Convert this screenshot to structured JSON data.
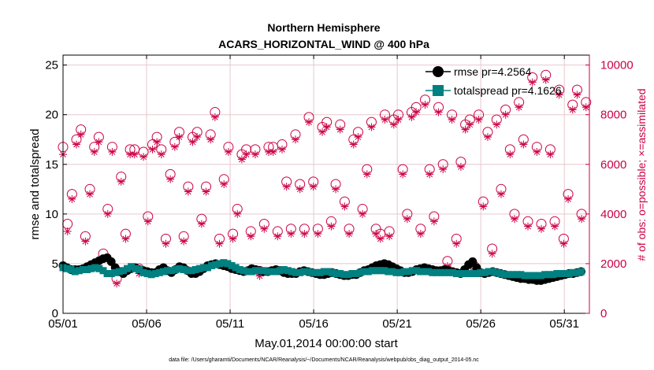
{
  "chart_data": {
    "type": "scatter",
    "title_line1": "Northern Hemisphere",
    "title_line2": "ACARS_HORIZONTAL_WIND @ 400 hPa",
    "xlabel": "May.01,2014 00:00:00 start",
    "ylabel_left": "rmse and totalspread",
    "ylabel_right": "# of obs: o=possible; ×=assimilated",
    "footnote": "data file: /Users/gharamti/Documents/NCAR/Reanalysis/~/Documents/NCAR/Reanalysis/webpub/obs_diag_output_2014-05.nc",
    "x_range": [
      0,
      31.5
    ],
    "x_tick_labels": [
      "05/01",
      "05/06",
      "05/11",
      "05/16",
      "05/21",
      "05/26",
      "05/31"
    ],
    "x_tick_values": [
      0,
      5,
      10,
      15,
      20,
      25,
      30
    ],
    "y_left_range": [
      0,
      26
    ],
    "y_left_ticks": [
      "0",
      "5",
      "10",
      "15",
      "20",
      "25"
    ],
    "y_right_range": [
      0,
      10400
    ],
    "y_right_ticks": [
      "0",
      "2000",
      "4000",
      "6000",
      "8000",
      "10000"
    ],
    "grid": true,
    "legend_position": "top-right",
    "colors": {
      "rmse": "#000000",
      "totalspread": "#008080",
      "obs": "#cc0044",
      "grid": "#e6c8cd"
    },
    "series": [
      {
        "name": "rmse pr=4.2564",
        "axis": "left",
        "marker": "circle-filled",
        "values": [
          4.8,
          4.6,
          4.4,
          4.4,
          4.4,
          4.5,
          4.7,
          4.9,
          5.1,
          5.3,
          5.5,
          5.6,
          5.2,
          4.6,
          4.2,
          4.0,
          4.3,
          4.5,
          4.6,
          4.4,
          4.3,
          4.2,
          4.1,
          4.1,
          4.4,
          4.6,
          4.3,
          4.1,
          4.4,
          4.7,
          4.6,
          4.3,
          4.0,
          4.0,
          4.2,
          4.5,
          4.8,
          4.9,
          5.0,
          4.9,
          4.8,
          4.7,
          4.5,
          4.4,
          4.3,
          4.2,
          4.3,
          4.5,
          4.4,
          4.3,
          4.2,
          4.2,
          4.3,
          4.4,
          4.3,
          4.1,
          4.0,
          4.0,
          4.0,
          4.2,
          4.3,
          4.2,
          4.1,
          4.0,
          3.9,
          3.9,
          4.0,
          4.1,
          4.0,
          3.9,
          3.8,
          3.8,
          3.9,
          3.9,
          4.1,
          4.3,
          4.4,
          4.6,
          4.8,
          4.9,
          5.0,
          4.9,
          4.7,
          4.5,
          4.3,
          4.1,
          4.1,
          4.2,
          4.4,
          4.5,
          4.6,
          4.5,
          4.4,
          4.3,
          4.3,
          4.4,
          4.3,
          4.2,
          4.1,
          4.0,
          4.4,
          4.9,
          5.2,
          4.6,
          4.1,
          4.0,
          4.1,
          4.2,
          4.1,
          4.0,
          3.9,
          3.8,
          3.7,
          3.6,
          3.5,
          3.5,
          3.4,
          3.4,
          3.3,
          3.3,
          3.4,
          3.5,
          3.6,
          3.7,
          3.8,
          3.9,
          4.0,
          4.0,
          4.1,
          4.2
        ]
      },
      {
        "name": "totalspread pr=4.1626",
        "axis": "left",
        "marker": "square-filled",
        "values": [
          4.6,
          4.5,
          4.4,
          4.2,
          4.3,
          4.4,
          4.4,
          4.5,
          4.6,
          4.5,
          4.3,
          4.0,
          4.0,
          4.1,
          4.2,
          4.3,
          4.5,
          4.7,
          4.5,
          4.4,
          4.1,
          4.0,
          3.9,
          4.0,
          4.1,
          4.2,
          4.3,
          4.3,
          4.4,
          4.5,
          4.4,
          4.3,
          4.3,
          4.4,
          4.5,
          4.6,
          4.6,
          4.8,
          4.9,
          5.0,
          5.1,
          5.0,
          4.8,
          4.6,
          4.4,
          4.3,
          4.2,
          4.2,
          4.3,
          4.3,
          4.3,
          4.2,
          4.2,
          4.2,
          4.3,
          4.4,
          4.3,
          4.2,
          4.1,
          4.1,
          4.2,
          4.2,
          4.1,
          4.1,
          4.1,
          4.2,
          4.2,
          4.1,
          4.0,
          4.0,
          3.9,
          3.9,
          4.0,
          4.0,
          4.1,
          4.2,
          4.2,
          4.3,
          4.3,
          4.3,
          4.3,
          4.2,
          4.2,
          4.1,
          4.1,
          4.2,
          4.2,
          4.3,
          4.3,
          4.2,
          4.2,
          4.2,
          4.1,
          4.1,
          4.1,
          4.1,
          4.1,
          4.1,
          4.0,
          4.0,
          4.0,
          4.0,
          4.0,
          4.0,
          4.1,
          4.1,
          4.2,
          4.2,
          4.1,
          4.0,
          3.9,
          3.9,
          3.9,
          3.9,
          3.9,
          3.8,
          3.8,
          3.8,
          3.8,
          3.8,
          3.9,
          3.9,
          3.9,
          4.0,
          4.0,
          4.0,
          4.0,
          4.1,
          4.1,
          4.2
        ]
      },
      {
        "name": "possible",
        "axis": "right",
        "marker": "circle-open",
        "values": [
          6700,
          3600,
          4800,
          7000,
          7400,
          3100,
          5000,
          6700,
          7100,
          2400,
          4200,
          6700,
          1400,
          5500,
          3200,
          6600,
          6600,
          1800,
          6500,
          3900,
          6800,
          7100,
          6600,
          3000,
          5600,
          6900,
          7300,
          3100,
          5100,
          7100,
          7300,
          3800,
          5100,
          7200,
          8100,
          3000,
          5400,
          6700,
          3200,
          4200,
          6400,
          6600,
          3300,
          6600,
          1700,
          3600,
          6700,
          6700,
          3300,
          6800,
          5300,
          3400,
          7200,
          5200,
          3400,
          7900,
          5300,
          3400,
          7500,
          7700,
          3700,
          5200,
          7600,
          4500,
          3400,
          7000,
          7300,
          4200,
          5800,
          7700,
          3400,
          3200,
          8000,
          3300,
          7800,
          8000,
          5800,
          4000,
          8100,
          8300,
          3400,
          8600,
          5800,
          3900,
          8300,
          6000,
          2100,
          8000,
          3000,
          6100,
          7600,
          7800,
          1900,
          8000,
          4500,
          7300,
          2600,
          7800,
          5000,
          8200,
          6600,
          4000,
          8500,
          7000,
          3700,
          9500,
          6700,
          3600,
          9600,
          6600,
          3700,
          9000,
          3000,
          4800,
          8400,
          9000,
          4000,
          8500
        ]
      },
      {
        "name": "assimilated",
        "axis": "right",
        "marker": "asterisk",
        "values": [
          6400,
          3300,
          4600,
          6800,
          7200,
          2900,
          4800,
          6500,
          6900,
          2200,
          4000,
          6500,
          1200,
          5300,
          3000,
          6400,
          6400,
          1600,
          6300,
          3700,
          6600,
          6900,
          6400,
          2800,
          5400,
          6700,
          7100,
          2900,
          4900,
          6900,
          7100,
          3600,
          4900,
          7000,
          7900,
          2800,
          5200,
          6500,
          3000,
          4000,
          6200,
          6400,
          3100,
          6400,
          1500,
          3400,
          6500,
          6500,
          3100,
          6600,
          5100,
          3200,
          7000,
          5000,
          3200,
          7700,
          5100,
          3200,
          7300,
          7500,
          3500,
          5000,
          7400,
          4300,
          3200,
          6800,
          7100,
          4000,
          5600,
          7500,
          3200,
          3000,
          7800,
          3100,
          7600,
          7800,
          5600,
          3800,
          7900,
          8100,
          3200,
          8400,
          5600,
          3700,
          8100,
          5800,
          1900,
          7800,
          2800,
          5900,
          7400,
          7600,
          1700,
          7800,
          4300,
          7100,
          2400,
          7600,
          4800,
          8000,
          6400,
          3800,
          8300,
          6800,
          3500,
          9300,
          6500,
          3400,
          9400,
          6400,
          3500,
          8800,
          2800,
          4600,
          8200,
          8800,
          3800,
          8300
        ]
      }
    ]
  }
}
